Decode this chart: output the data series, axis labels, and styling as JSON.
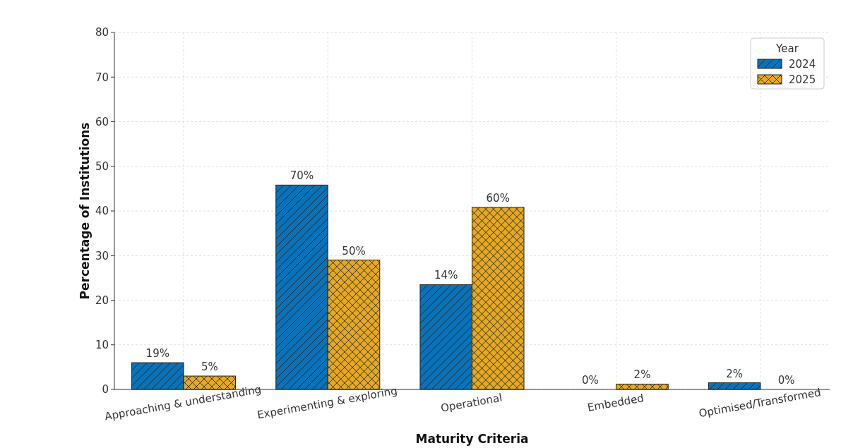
{
  "chart_data": {
    "type": "bar",
    "xlabel": "Maturity Criteria",
    "ylabel": "Percentage of Institutions",
    "legend_title": "Year",
    "categories": [
      "Approaching & understanding",
      "Experimenting & exploring",
      "Operational",
      "Embedded",
      "Optimised/Transformed"
    ],
    "series": [
      {
        "name": "2024",
        "color": "#0a72b8",
        "values": [
          6,
          45.8,
          23.5,
          0,
          1.5
        ]
      },
      {
        "name": "2025",
        "color": "#e6a923",
        "values": [
          3,
          29,
          40.8,
          1.2,
          0
        ]
      }
    ],
    "annotations": [
      {
        "text": "19%",
        "x": "Approaching & understanding",
        "y": 6
      },
      {
        "text": "5%",
        "x": "Approaching & understanding",
        "y": 3
      },
      {
        "text": "70%",
        "x": "Experimenting & exploring",
        "y": 45.8
      },
      {
        "text": "50%",
        "x": "Experimenting & exploring",
        "y": 29
      },
      {
        "text": "14%",
        "x": "Operational",
        "y": 23.5
      },
      {
        "text": "60%",
        "x": "Operational",
        "y": 40.8
      },
      {
        "text": "0%",
        "x": "Embedded",
        "y": 0
      },
      {
        "text": "2%",
        "x": "Embedded",
        "y": 1.2
      },
      {
        "text": "2%",
        "x": "Optimised/Transformed",
        "y": 1.5
      },
      {
        "text": "0%",
        "x": "Optimised/Transformed",
        "y": 0
      }
    ],
    "ylim": [
      0,
      80
    ],
    "yticks": [
      0,
      10,
      20,
      30,
      40,
      50,
      60,
      70,
      80
    ],
    "grid": true,
    "legend": "top right"
  }
}
